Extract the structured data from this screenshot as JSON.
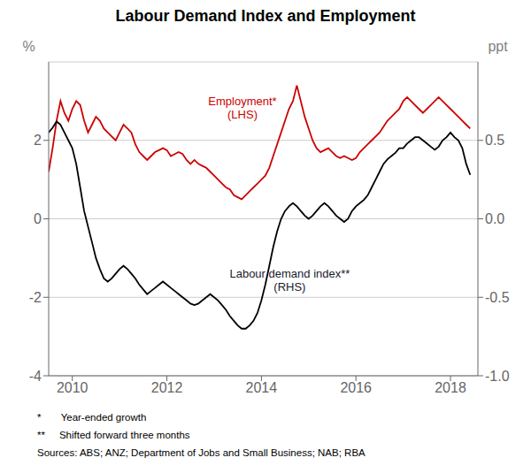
{
  "chart_data": {
    "type": "line",
    "title": "Labour Demand Index and Employment",
    "ylabel": "%",
    "y2label": "ppt",
    "x": [
      2009.5,
      2009.583,
      2009.667,
      2009.75,
      2009.833,
      2009.917,
      2010.0,
      2010.083,
      2010.167,
      2010.25,
      2010.333,
      2010.417,
      2010.5,
      2010.583,
      2010.667,
      2010.75,
      2010.833,
      2010.917,
      2011.0,
      2011.083,
      2011.167,
      2011.25,
      2011.333,
      2011.417,
      2011.5,
      2011.583,
      2011.667,
      2011.75,
      2011.833,
      2011.917,
      2012.0,
      2012.083,
      2012.167,
      2012.25,
      2012.333,
      2012.417,
      2012.5,
      2012.583,
      2012.667,
      2012.75,
      2012.833,
      2012.917,
      2013.0,
      2013.083,
      2013.167,
      2013.25,
      2013.333,
      2013.417,
      2013.5,
      2013.583,
      2013.667,
      2013.75,
      2013.833,
      2013.917,
      2014.0,
      2014.083,
      2014.167,
      2014.25,
      2014.333,
      2014.417,
      2014.5,
      2014.583,
      2014.667,
      2014.75,
      2014.833,
      2014.917,
      2015.0,
      2015.083,
      2015.167,
      2015.25,
      2015.333,
      2015.417,
      2015.5,
      2015.583,
      2015.667,
      2015.75,
      2015.833,
      2015.917,
      2016.0,
      2016.083,
      2016.167,
      2016.25,
      2016.333,
      2016.417,
      2016.5,
      2016.583,
      2016.667,
      2016.75,
      2016.833,
      2016.917,
      2017.0,
      2017.083,
      2017.167,
      2017.25,
      2017.333,
      2017.417,
      2017.5,
      2017.583,
      2017.667,
      2017.75,
      2017.833,
      2017.917,
      2018.0,
      2018.083,
      2018.167,
      2018.25,
      2018.333,
      2018.417
    ],
    "xlim": [
      2009.5,
      2018.58
    ],
    "xticks": [
      2010,
      2012,
      2014,
      2016,
      2018
    ],
    "ylim": [
      -4,
      4
    ],
    "yticks": [
      -4,
      -2,
      0,
      2
    ],
    "y2lim": [
      -1.0,
      1.0
    ],
    "y2ticks": [
      {
        "value": -1.0,
        "label": "-1.0"
      },
      {
        "value": -0.5,
        "label": "-0.5"
      },
      {
        "value": 0.0,
        "label": "0.0"
      },
      0.5
    ],
    "grid": true,
    "series": [
      {
        "color": "#cc0000",
        "values": [
          1.2,
          1.8,
          2.5,
          3.0,
          2.7,
          2.5,
          2.8,
          3.0,
          2.9,
          2.5,
          2.2,
          2.4,
          2.6,
          2.5,
          2.3,
          2.2,
          2.1,
          2.0,
          2.2,
          2.4,
          2.3,
          2.2,
          1.9,
          1.7,
          1.6,
          1.5,
          1.6,
          1.7,
          1.75,
          1.8,
          1.75,
          1.6,
          1.65,
          1.7,
          1.65,
          1.5,
          1.4,
          1.5,
          1.4,
          1.35,
          1.3,
          1.2,
          1.1,
          1.0,
          0.9,
          0.8,
          0.75,
          0.6,
          0.55,
          0.5,
          0.6,
          0.7,
          0.8,
          0.9,
          1.0,
          1.1,
          1.3,
          1.6,
          1.9,
          2.2,
          2.5,
          2.8,
          3.0,
          3.4,
          3.0,
          2.6,
          2.3,
          2.0,
          1.8,
          1.7,
          1.75,
          1.8,
          1.7,
          1.6,
          1.55,
          1.6,
          1.55,
          1.5,
          1.55,
          1.7,
          1.8,
          1.9,
          2.0,
          2.1,
          2.2,
          2.35,
          2.5,
          2.6,
          2.7,
          2.8,
          3.0,
          3.1,
          3.0,
          2.9,
          2.8,
          2.7,
          2.8,
          2.9,
          3.0,
          3.1,
          3.0,
          2.9,
          2.8,
          2.7,
          2.6,
          2.5,
          2.4,
          2.3
        ]
      },
      {
        "color": "#000000",
        "axis": "y2",
        "values": [
          0.55,
          0.58,
          0.62,
          0.6,
          0.55,
          0.5,
          0.45,
          0.35,
          0.2,
          0.05,
          -0.05,
          -0.15,
          -0.25,
          -0.32,
          -0.38,
          -0.4,
          -0.38,
          -0.35,
          -0.32,
          -0.3,
          -0.32,
          -0.35,
          -0.38,
          -0.42,
          -0.45,
          -0.48,
          -0.46,
          -0.44,
          -0.42,
          -0.4,
          -0.42,
          -0.44,
          -0.46,
          -0.48,
          -0.5,
          -0.52,
          -0.54,
          -0.55,
          -0.54,
          -0.52,
          -0.5,
          -0.48,
          -0.5,
          -0.52,
          -0.55,
          -0.58,
          -0.62,
          -0.65,
          -0.68,
          -0.7,
          -0.7,
          -0.68,
          -0.65,
          -0.6,
          -0.52,
          -0.42,
          -0.3,
          -0.18,
          -0.08,
          0.0,
          0.05,
          0.08,
          0.1,
          0.08,
          0.05,
          0.02,
          0.0,
          0.02,
          0.05,
          0.08,
          0.1,
          0.08,
          0.05,
          0.02,
          0.0,
          -0.02,
          0.0,
          0.05,
          0.08,
          0.1,
          0.12,
          0.15,
          0.2,
          0.25,
          0.3,
          0.35,
          0.38,
          0.4,
          0.42,
          0.45,
          0.45,
          0.48,
          0.5,
          0.52,
          0.52,
          0.5,
          0.48,
          0.46,
          0.44,
          0.46,
          0.5,
          0.52,
          0.55,
          0.52,
          0.5,
          0.45,
          0.35,
          0.28
        ]
      }
    ],
    "annotations": [
      {
        "text": "Employment*\n(LHS)",
        "x": 2013.6,
        "y": 2.85,
        "color": "#cc0000"
      },
      {
        "text": "Labour demand index**\n(RHS)",
        "x": 2014.6,
        "y": -1.55,
        "color": "#1a1a2e"
      }
    ],
    "footnotes": [
      "*       Year-ended growth",
      "**     Shifted forward three months",
      "Sources: ABS; ANZ; Department of Jobs and Small Business; NAB; RBA"
    ]
  }
}
